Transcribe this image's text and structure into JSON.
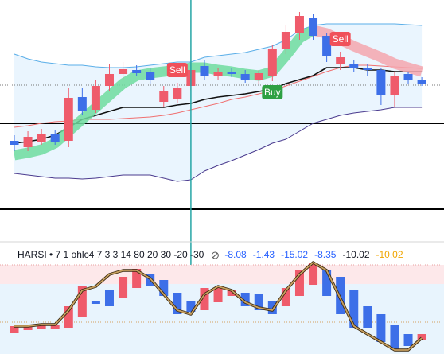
{
  "chart_data": [
    {
      "type": "candlestick",
      "up_color": "#ef5b6b",
      "down_color": "#3d6fe8",
      "open": [
        123,
        115,
        122,
        132,
        123,
        178,
        162,
        192,
        207,
        212,
        210,
        172,
        175,
        192,
        217,
        204,
        210,
        207,
        200,
        205,
        238,
        258,
        278,
        255,
        220,
        220,
        215,
        212,
        180,
        207,
        200
      ],
      "high": [
        130,
        135,
        138,
        136,
        190,
        190,
        200,
        220,
        222,
        218,
        214,
        192,
        196,
        222,
        225,
        214,
        214,
        212,
        212,
        244,
        268,
        285,
        282,
        258,
        235,
        224,
        220,
        215,
        210,
        210,
        203
      ],
      "low": [
        110,
        110,
        118,
        118,
        115,
        155,
        158,
        185,
        200,
        204,
        195,
        165,
        170,
        185,
        200,
        200,
        203,
        196,
        195,
        198,
        232,
        250,
        250,
        222,
        212,
        210,
        205,
        168,
        165,
        195,
        192
      ],
      "close": [
        118,
        128,
        132,
        122,
        177,
        160,
        192,
        207,
        213,
        208,
        200,
        185,
        190,
        212,
        205,
        210,
        207,
        200,
        208,
        238,
        260,
        280,
        255,
        230,
        228,
        215,
        212,
        180,
        205,
        200,
        195
      ],
      "ylim": [
        0,
        300
      ],
      "series": [
        {
          "name": "upper",
          "color": "#5aaee8",
          "values": [
            232,
            226,
            222,
            220,
            218,
            218,
            216,
            215,
            215,
            216,
            218,
            220,
            222,
            222,
            228,
            230,
            232,
            234,
            238,
            242,
            250,
            262,
            268,
            270,
            270,
            270,
            270,
            270,
            270,
            269,
            268
          ]
        },
        {
          "name": "lower",
          "color": "#4a3a8e",
          "values": [
            82,
            80,
            78,
            76,
            76,
            75,
            76,
            78,
            80,
            80,
            80,
            76,
            72,
            74,
            85,
            92,
            98,
            105,
            112,
            120,
            125,
            135,
            145,
            150,
            155,
            158,
            160,
            162,
            165,
            165,
            165
          ]
        },
        {
          "name": "basis",
          "color": "#f07070",
          "values": [
            140,
            142,
            145,
            147,
            148,
            150,
            150,
            150,
            151,
            152,
            153,
            155,
            158,
            162,
            166,
            170,
            175,
            178,
            182,
            186,
            192,
            198,
            204,
            210,
            215,
            218,
            218,
            217,
            216,
            215,
            214
          ]
        },
        {
          "name": "trend",
          "color": "#111111",
          "values": [
            120,
            122,
            125,
            130,
            140,
            150,
            155,
            160,
            165,
            165,
            165,
            165,
            168,
            170,
            175,
            178,
            180,
            182,
            185,
            188,
            195,
            200,
            205,
            215,
            215,
            215,
            212,
            212,
            210,
            210,
            210
          ]
        },
        {
          "name": "cloud-up",
          "color": "#6fdc9f",
          "values": [
            105,
            108,
            112,
            120,
            135,
            150,
            165,
            180,
            195,
            205,
            208,
            210,
            212,
            215,
            215,
            212,
            210,
            207,
            205,
            210,
            230,
            252,
            262,
            null,
            null,
            null,
            null,
            null,
            null,
            null,
            null
          ]
        },
        {
          "name": "cloud-down",
          "color": "#f4a6ae",
          "values": [
            null,
            null,
            null,
            null,
            null,
            null,
            null,
            null,
            null,
            null,
            null,
            null,
            null,
            null,
            null,
            null,
            null,
            null,
            null,
            null,
            null,
            null,
            262,
            258,
            250,
            242,
            235,
            228,
            220,
            215,
            210
          ]
        }
      ],
      "hlines": [
        145,
        37
      ],
      "last_price": 193,
      "crosshair_index": 13,
      "signals": [
        {
          "label": "Sell",
          "index": 12,
          "kind": "sell"
        },
        {
          "label": "Buy",
          "index": 19,
          "kind": "buy"
        },
        {
          "label": "Sell",
          "index": 24,
          "kind": "sell"
        }
      ]
    },
    {
      "type": "candlestick",
      "legend": "HARSI • 7 1 ohlc4 7 3 3 14 80 20 30 -20 -30",
      "legend_values": [
        {
          "text": "-8.08",
          "color": "#2962ff"
        },
        {
          "text": "-1.43",
          "color": "#2962ff"
        },
        {
          "text": "-15.02",
          "color": "#2962ff"
        },
        {
          "text": "-8.35",
          "color": "#2962ff"
        },
        {
          "text": "-10.02",
          "color": "#131722"
        },
        {
          "text": "-10.02",
          "color": "#f0a500"
        }
      ],
      "up_color": "#ef5b6b",
      "down_color": "#3d6fe8",
      "open": [
        27,
        30,
        32,
        32,
        33,
        47,
        67,
        80,
        70,
        83,
        100,
        93,
        77,
        67,
        55,
        65,
        73,
        77,
        75,
        67,
        60,
        73,
        87,
        105,
        97,
        80,
        60,
        50,
        37,
        25,
        17
      ],
      "close": [
        35,
        37,
        37,
        37,
        60,
        85,
        63,
        60,
        97,
        107,
        85,
        73,
        50,
        53,
        83,
        83,
        80,
        60,
        55,
        50,
        83,
        105,
        115,
        73,
        50,
        33,
        33,
        15,
        5,
        10,
        25
      ],
      "ylim": [
        0,
        115
      ],
      "series": [
        {
          "name": "ha-line",
          "color": "#c8a060",
          "values": [
            35,
            35,
            37,
            37,
            55,
            80,
            85,
            100,
            105,
            105,
            95,
            75,
            55,
            50,
            75,
            85,
            80,
            65,
            58,
            55,
            80,
            100,
            115,
            105,
            70,
            35,
            25,
            15,
            5,
            5,
            20
          ]
        }
      ],
      "ob_zone": [
        88,
        112
      ],
      "os_level": 40
    }
  ]
}
